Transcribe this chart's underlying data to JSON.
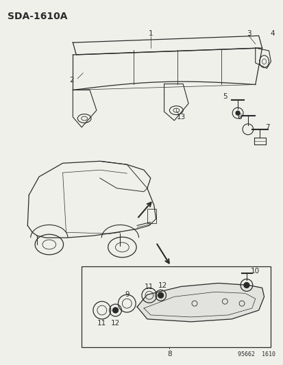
{
  "title": "SDA-1610A",
  "footer": "95662  1610",
  "bg_color": "#f0f0eb",
  "line_color": "#2a2a2a",
  "font_size": 7.5,
  "title_font_size": 10
}
